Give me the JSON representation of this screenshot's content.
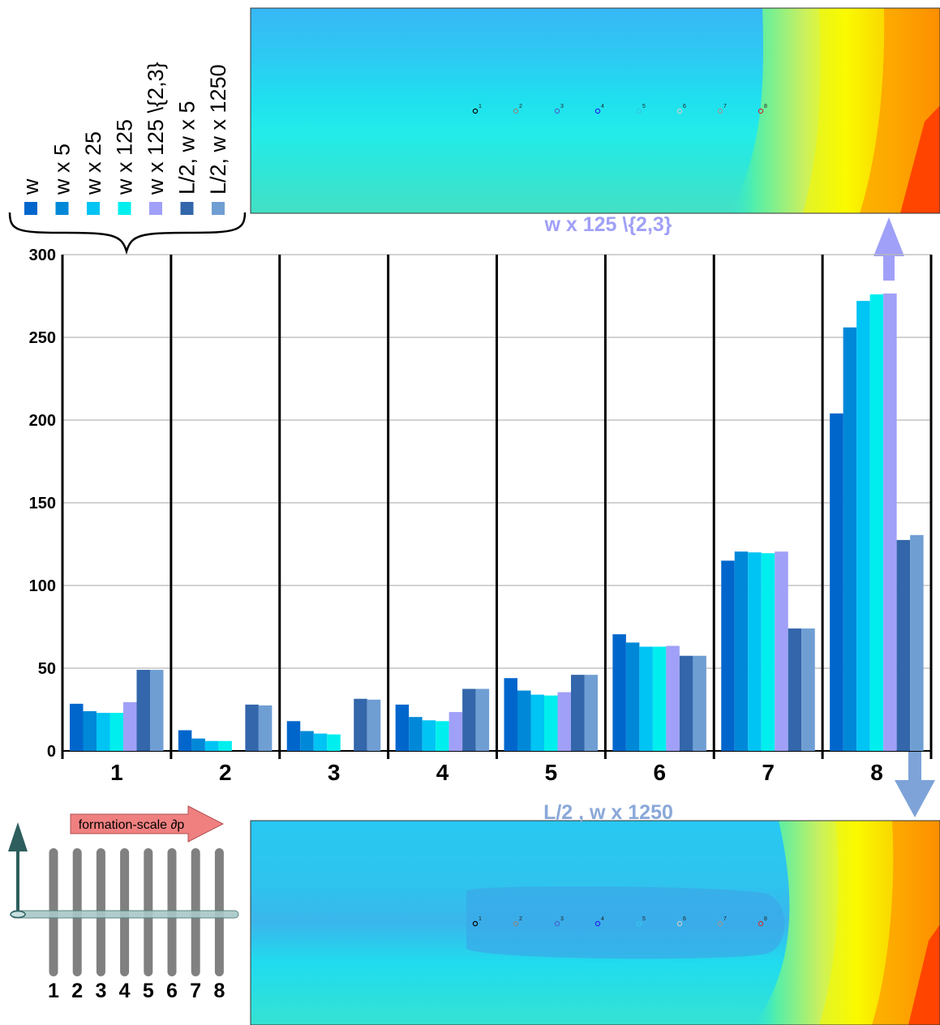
{
  "chart_data": {
    "type": "bar",
    "categories": [
      "1",
      "2",
      "3",
      "4",
      "5",
      "6",
      "7",
      "8"
    ],
    "ylim": [
      0,
      300
    ],
    "yticks": [
      0,
      50,
      100,
      150,
      200,
      250,
      300
    ],
    "grid": true,
    "legend_position": "top-left",
    "series": [
      {
        "name": "w",
        "color": "#0066cc",
        "values": [
          28.5,
          12.5,
          18,
          28,
          44,
          70.5,
          115,
          204
        ]
      },
      {
        "name": "w x 5",
        "color": "#0088d8",
        "values": [
          24,
          7.5,
          12,
          20.5,
          36.5,
          65.5,
          120.5,
          256
        ]
      },
      {
        "name": "w x 25",
        "color": "#00c4f4",
        "values": [
          23,
          6,
          10.5,
          18.5,
          34,
          63,
          120,
          272
        ]
      },
      {
        "name": "w x 125",
        "color": "#00eeee",
        "values": [
          23,
          6,
          10,
          18,
          33.5,
          63,
          119.5,
          276
        ]
      },
      {
        "name": "w x 125 \\{2,3}",
        "color": "#a0a0f8",
        "values": [
          29.5,
          0,
          0,
          23.5,
          35.5,
          63.5,
          120.5,
          276.5
        ]
      },
      {
        "name": "L/2, w x 5",
        "color": "#3366aa",
        "values": [
          49,
          28,
          31.5,
          37.5,
          46,
          57.5,
          74,
          127.5
        ]
      },
      {
        "name": "L/2, w x 1250",
        "color": "#6f9ed3",
        "values": [
          49,
          27.5,
          31,
          37.5,
          46,
          57.5,
          74,
          130.5
        ]
      }
    ]
  },
  "captions": {
    "top": "w x 125 \\{2,3}",
    "bottom": "L/2 , w x 1250"
  },
  "schematic": {
    "arrow_label": "formation-scale ∂p",
    "wells": [
      "1",
      "2",
      "3",
      "4",
      "5",
      "6",
      "7",
      "8"
    ]
  },
  "map_markers": [
    "1",
    "2",
    "3",
    "4",
    "5",
    "6",
    "7",
    "8"
  ],
  "colors": {
    "top_caption": "#a0a0f8",
    "bottom_caption": "#8aa8d8",
    "up_arrow": "#a0a0f8",
    "down_arrow": "#7da3d8",
    "schematic_arrow": "#f08080",
    "well_gray": "#808080"
  }
}
